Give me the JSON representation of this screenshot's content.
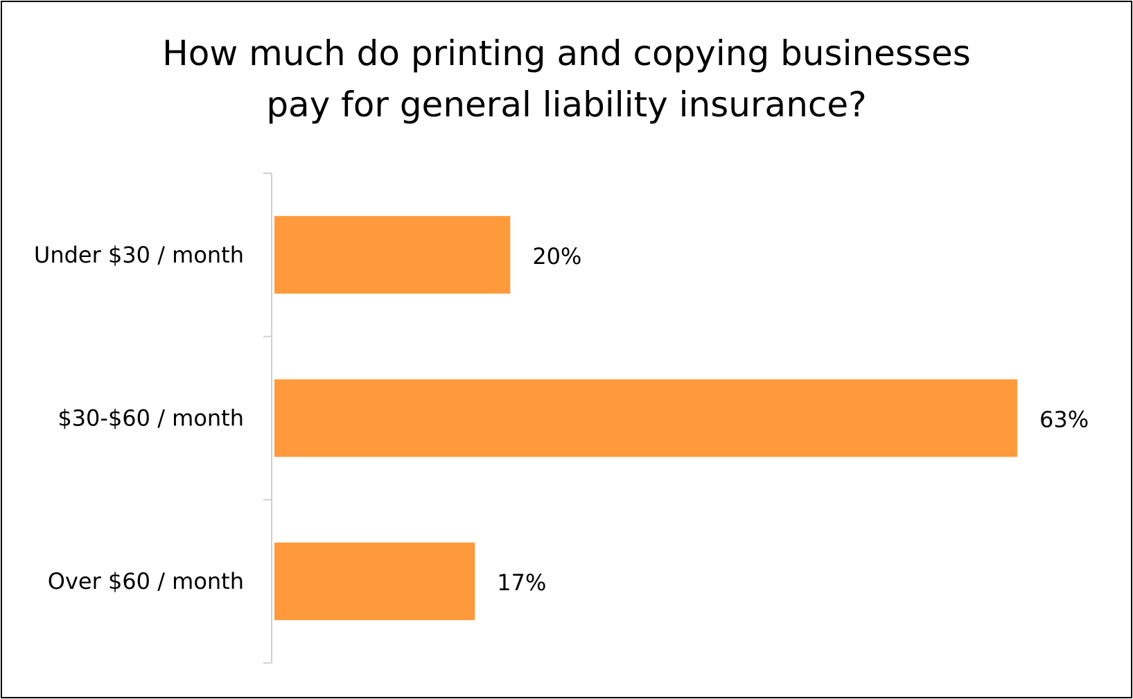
{
  "chart_data": {
    "type": "bar",
    "orientation": "horizontal",
    "title_lines": [
      "How much do printing and copying businesses",
      "pay for general liability insurance?"
    ],
    "categories": [
      "Under $30 / month",
      "$30-$60 / month",
      "Over $60 / month"
    ],
    "values": [
      20,
      63,
      17
    ],
    "value_labels": [
      "20%",
      "63%",
      "17%"
    ],
    "xlim": [
      0,
      63
    ],
    "bar_color": "#ff9a3c",
    "axis_color": "#d0d0d0",
    "grid": false,
    "legend": "none"
  }
}
